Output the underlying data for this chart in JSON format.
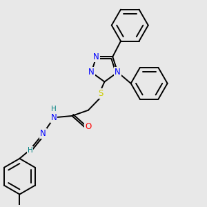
{
  "bg_color": "#e8e8e8",
  "bond_color": "#000000",
  "bond_width": 1.4,
  "atom_colors": {
    "N": "#0000ff",
    "O": "#ff0000",
    "S": "#cccc00",
    "H": "#008080",
    "C": "#000000"
  },
  "font_size": 8.5,
  "font_size_h": 7.5
}
